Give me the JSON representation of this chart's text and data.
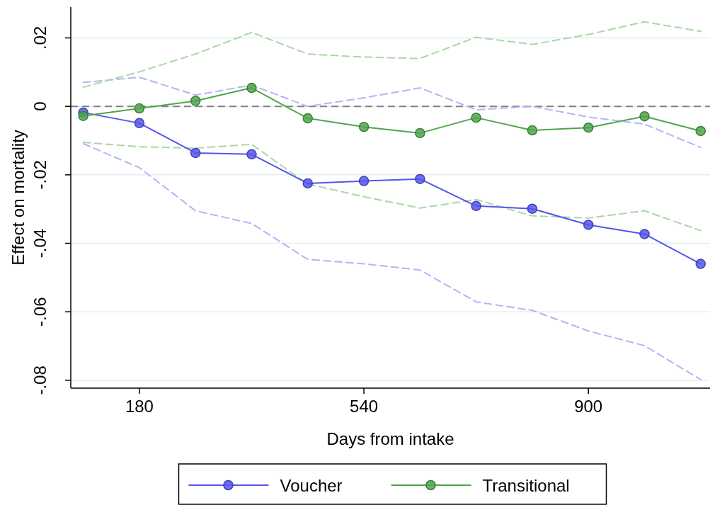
{
  "chart_data": {
    "type": "line",
    "xlabel": "Days from intake",
    "ylabel": "Effect on mortality",
    "x": [
      90,
      180,
      270,
      360,
      450,
      540,
      630,
      720,
      810,
      900,
      990,
      1080
    ],
    "xlim": [
      70,
      1095
    ],
    "xticks": [
      180,
      540,
      900
    ],
    "ylim": [
      -0.0823,
      0.029
    ],
    "yticks": [
      {
        "value": 0.02,
        "label": ".02"
      },
      {
        "value": 0,
        "label": "0"
      },
      {
        "value": -0.02,
        "label": "-.02"
      },
      {
        "value": -0.04,
        "label": "-.04"
      },
      {
        "value": -0.06,
        "label": "-.06"
      },
      {
        "value": -0.08,
        "label": "-.08"
      }
    ],
    "grid": "y",
    "legend": "bottom",
    "marker": "circle",
    "line_style": "solid",
    "ref_lines": [
      {
        "axis": "y",
        "value": 0,
        "color": "#808080",
        "line_style": "dashed"
      }
    ],
    "series": [
      {
        "color": "#b4b4f8",
        "line_style": "dashed",
        "marker": "none",
        "values": [
          0.007,
          0.0085,
          0.0033,
          0.0062,
          0,
          0.0025,
          0.0054,
          -0.001,
          0,
          -0.0031,
          -0.0052,
          -0.012
        ]
      },
      {
        "color": "#b4b4f8",
        "line_style": "dashed",
        "marker": "none",
        "values": [
          -0.0109,
          -0.0179,
          -0.0305,
          -0.0342,
          -0.0447,
          -0.046,
          -0.0478,
          -0.0571,
          -0.0596,
          -0.0656,
          -0.0699,
          -0.0798
        ]
      },
      {
        "color": "#acd6a6",
        "line_style": "dashed",
        "marker": "none",
        "values": [
          0.0056,
          0.0101,
          0.0153,
          0.0216,
          0.0153,
          0.0144,
          0.014,
          0.0202,
          0.0181,
          0.021,
          0.0247,
          0.0219
        ]
      },
      {
        "color": "#acd6a6",
        "line_style": "dashed",
        "marker": "none",
        "values": [
          -0.0105,
          -0.0118,
          -0.0122,
          -0.0111,
          -0.0227,
          -0.0264,
          -0.0297,
          -0.0272,
          -0.032,
          -0.0326,
          -0.0305,
          -0.0363
        ]
      },
      {
        "name": "Voucher",
        "color": "#5555ee",
        "values": [
          -0.0018,
          -0.0049,
          -0.0136,
          -0.014,
          -0.0225,
          -0.0218,
          -0.0212,
          -0.0291,
          -0.0299,
          -0.0346,
          -0.0373,
          -0.046
        ]
      },
      {
        "name": "Transitional",
        "color": "#4fa64a",
        "values": [
          -0.0028,
          -0.0006,
          0.0016,
          0.0054,
          -0.0035,
          -0.006,
          -0.0078,
          -0.0033,
          -0.007,
          -0.0062,
          -0.0029,
          -0.0072
        ]
      }
    ]
  }
}
